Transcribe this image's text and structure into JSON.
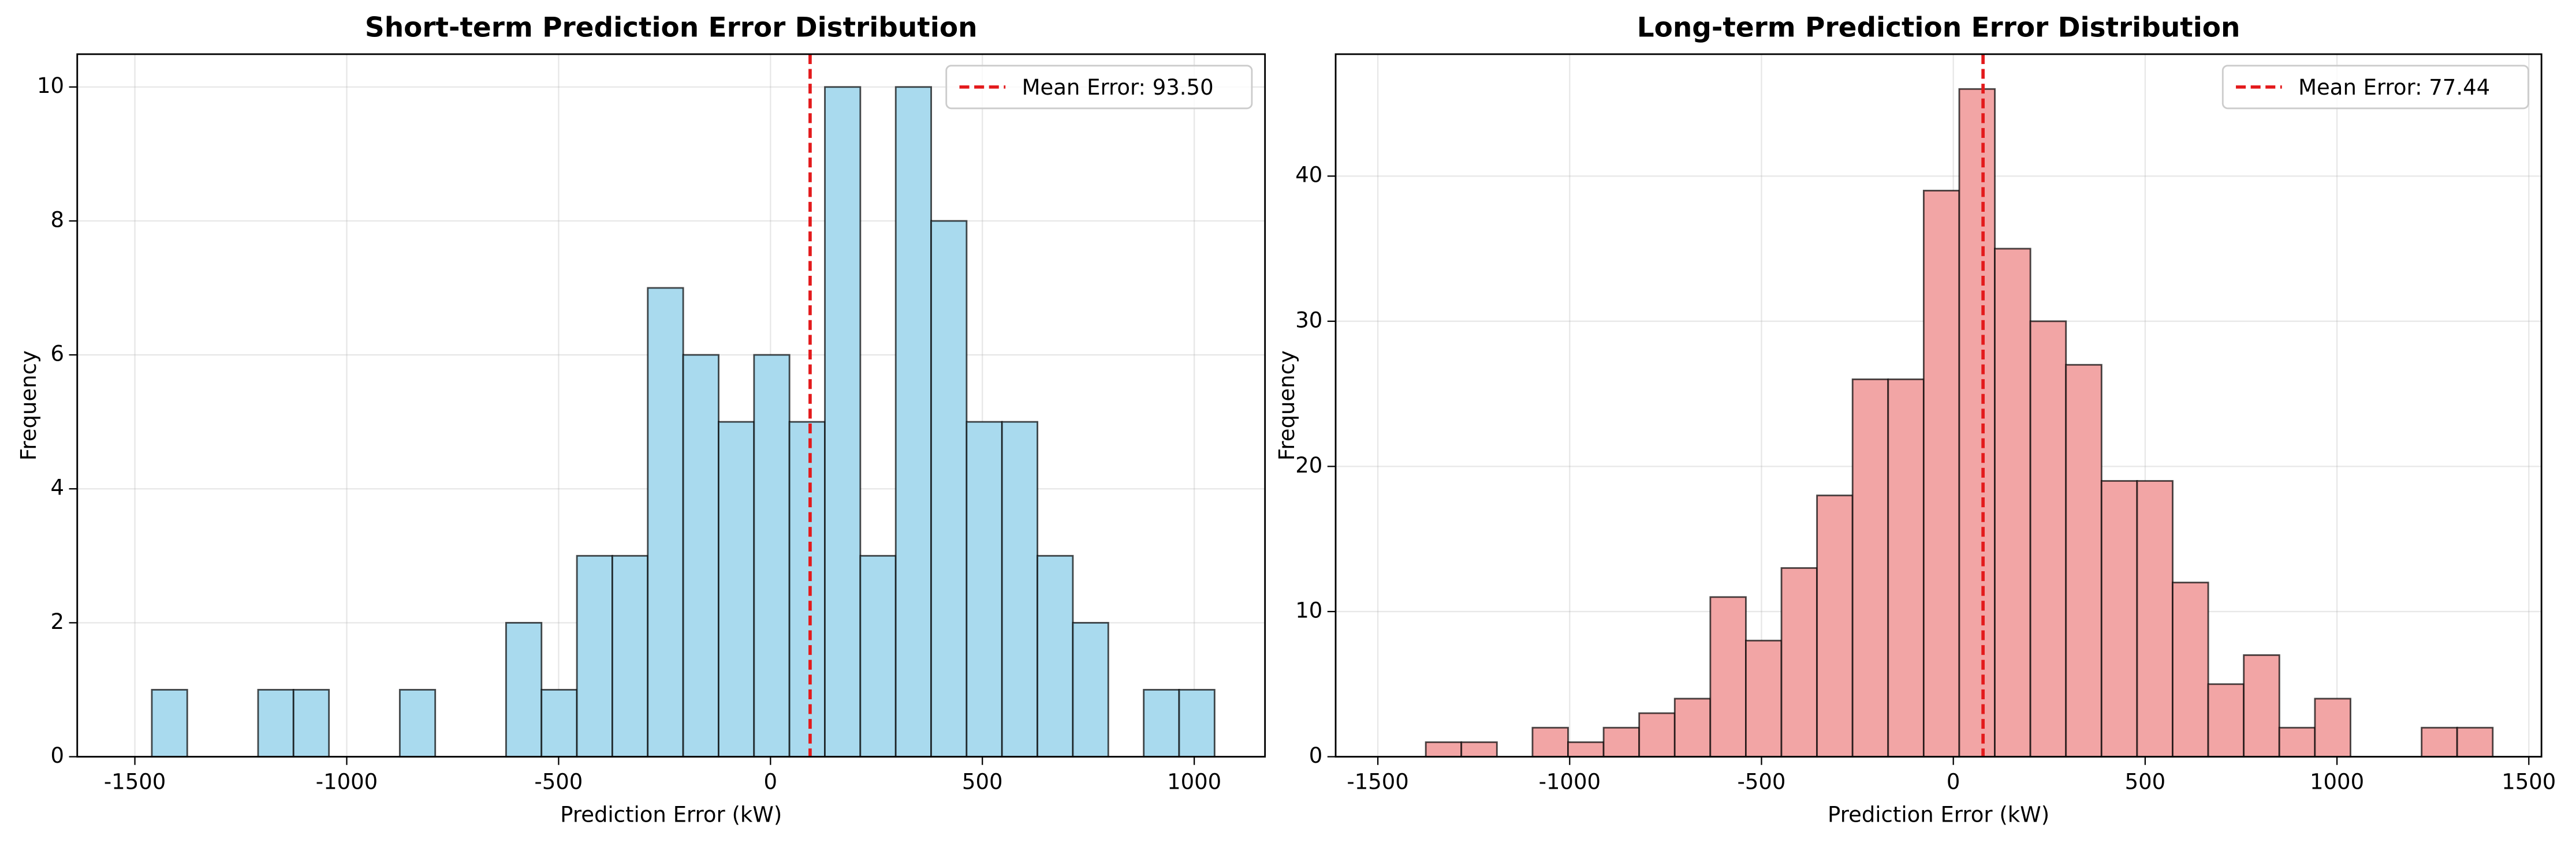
{
  "chart_data": [
    {
      "type": "histogram",
      "title": "Short-term Prediction Error Distribution",
      "x_label": "Prediction Error (kW)",
      "y_label": "Frequency",
      "bins": [
        -1460,
        -1376.4,
        -1292.8,
        -1209.2,
        -1125.6,
        -1042,
        -958.4,
        -874.8,
        -791.2,
        -707.6,
        -624,
        -540.4,
        -456.8,
        -373.2,
        -289.6,
        -206,
        -122.4,
        -38.8,
        44.8,
        128.4,
        212,
        295.6,
        379.2,
        462.8,
        546.4,
        630,
        713.6,
        797.2,
        880.8,
        964.4,
        1048
      ],
      "values": [
        1,
        0,
        0,
        1,
        1,
        0,
        0,
        1,
        0,
        0,
        2,
        1,
        3,
        3,
        7,
        6,
        5,
        6,
        5,
        10,
        3,
        10,
        8,
        5,
        5,
        3,
        2,
        0,
        1,
        1
      ],
      "color": "#a9daee",
      "mean_line": {
        "value": 93.5,
        "label": "Mean Error: 93.50",
        "color": "#e31a1c"
      },
      "xlim": [
        -1636,
        1167
      ],
      "ylim": [
        0,
        10.49
      ],
      "xticks": [
        -1500,
        -1000,
        -500,
        0,
        500,
        1000
      ],
      "yticks": [
        0,
        2,
        4,
        6,
        8,
        10
      ],
      "grid": true,
      "legend": "upper right"
    },
    {
      "type": "histogram",
      "title": "Long-term Prediction Error Distribution",
      "x_label": "Prediction Error (kW)",
      "y_label": "Frequency",
      "bins": [
        -1375,
        -1282.3,
        -1189.6,
        -1096.9,
        -1004.2,
        -911.5,
        -818.8,
        -726.1,
        -633.4,
        -540.7,
        -448,
        -355.3,
        -262.6,
        -169.9,
        -77.2,
        15.5,
        108.2,
        200.9,
        293.6,
        386.3,
        479,
        571.7,
        664.4,
        757.1,
        849.8,
        942.5,
        1035.2,
        1127.9,
        1220.6,
        1313.3,
        1406
      ],
      "values": [
        1,
        1,
        0,
        2,
        1,
        2,
        3,
        4,
        11,
        8,
        13,
        18,
        26,
        26,
        39,
        46,
        35,
        30,
        27,
        19,
        19,
        12,
        5,
        7,
        2,
        4,
        0,
        0,
        2,
        2
      ],
      "color": "#f2a5a5",
      "mean_line": {
        "value": 77.44,
        "label": "Mean Error: 77.44",
        "color": "#e31a1c"
      },
      "xlim": [
        -1610,
        1533
      ],
      "ylim": [
        0,
        48.4
      ],
      "xticks": [
        -1500,
        -1000,
        -500,
        0,
        500,
        1000,
        1500
      ],
      "yticks": [
        0,
        10,
        20,
        30,
        40
      ],
      "grid": true,
      "legend": "upper right"
    }
  ]
}
